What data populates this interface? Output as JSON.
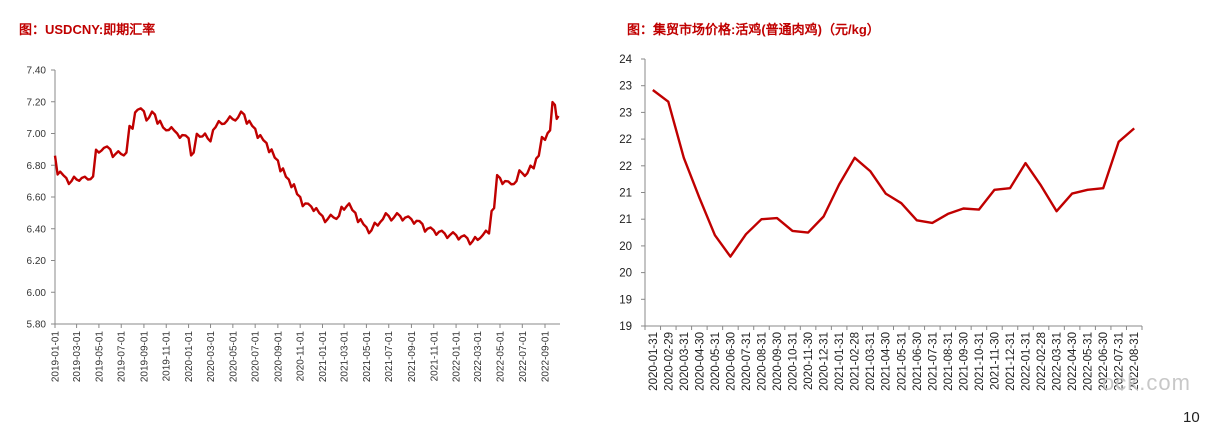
{
  "colors": {
    "series": "#c00000",
    "title": "#c00000",
    "axis": "#888888"
  },
  "chart_data": [
    {
      "type": "line",
      "title": "图：USDCNY:即期汇率",
      "xlabel": "",
      "ylabel": "",
      "ylim": [
        5.8,
        7.4
      ],
      "yticks": [
        "7.40",
        "7.20",
        "7.00",
        "6.80",
        "6.60",
        "6.40",
        "6.20",
        "6.00",
        "5.80"
      ],
      "xticks": [
        "2019-01-01",
        "2019-03-01",
        "2019-05-01",
        "2019-07-01",
        "2019-09-01",
        "2019-11-01",
        "2020-01-01",
        "2020-03-01",
        "2020-05-01",
        "2020-07-01",
        "2020-09-01",
        "2020-11-01",
        "2021-01-01",
        "2021-03-01",
        "2021-05-01",
        "2021-07-01",
        "2021-09-01",
        "2021-11-01",
        "2022-01-01",
        "2022-03-01",
        "2022-05-01",
        "2022-07-01",
        "2022-09-01"
      ],
      "grid": false,
      "series": [
        {
          "x": [
            "2019-01-01",
            "2019-01-15",
            "2019-02-01",
            "2019-02-15",
            "2019-03-01",
            "2019-03-15",
            "2019-04-01",
            "2019-04-15",
            "2019-05-01",
            "2019-05-15",
            "2019-06-01",
            "2019-06-15",
            "2019-07-01",
            "2019-07-15",
            "2019-08-01",
            "2019-08-15",
            "2019-09-01",
            "2019-09-15",
            "2019-10-01",
            "2019-10-15",
            "2019-11-01",
            "2019-11-15",
            "2019-12-01",
            "2019-12-15",
            "2020-01-01",
            "2020-01-15",
            "2020-02-01",
            "2020-02-15",
            "2020-03-01",
            "2020-03-15",
            "2020-04-01",
            "2020-04-15",
            "2020-05-01",
            "2020-05-15",
            "2020-06-01",
            "2020-06-15",
            "2020-07-01",
            "2020-07-15",
            "2020-08-01",
            "2020-08-15",
            "2020-09-01",
            "2020-09-15",
            "2020-10-01",
            "2020-10-15",
            "2020-11-01",
            "2020-11-15",
            "2020-12-01",
            "2020-12-15",
            "2021-01-01",
            "2021-01-15",
            "2021-02-01",
            "2021-02-15",
            "2021-03-01",
            "2021-03-15",
            "2021-04-01",
            "2021-04-15",
            "2021-05-01",
            "2021-05-15",
            "2021-06-01",
            "2021-06-15",
            "2021-07-01",
            "2021-07-15",
            "2021-08-01",
            "2021-08-15",
            "2021-09-01",
            "2021-09-15",
            "2021-10-01",
            "2021-10-15",
            "2021-11-01",
            "2021-11-15",
            "2021-12-01",
            "2021-12-15",
            "2022-01-01",
            "2022-01-15",
            "2022-02-01",
            "2022-02-15",
            "2022-03-01",
            "2022-03-15",
            "2022-04-01",
            "2022-04-15",
            "2022-05-01",
            "2022-05-15",
            "2022-06-01",
            "2022-06-15",
            "2022-07-01",
            "2022-07-15",
            "2022-08-01",
            "2022-08-15",
            "2022-09-01",
            "2022-09-15",
            "2022-09-28",
            "2022-10-08"
          ],
          "y": [
            6.86,
            6.76,
            6.72,
            6.7,
            6.71,
            6.72,
            6.71,
            6.73,
            6.88,
            6.91,
            6.9,
            6.87,
            6.87,
            6.88,
            7.03,
            7.15,
            7.14,
            7.1,
            7.12,
            7.08,
            7.02,
            7.04,
            7.0,
            6.99,
            6.97,
            6.88,
            6.98,
            7.0,
            6.95,
            7.04,
            7.06,
            7.08,
            7.09,
            7.1,
            7.12,
            7.08,
            7.03,
            6.99,
            6.94,
            6.9,
            6.83,
            6.78,
            6.71,
            6.68,
            6.6,
            6.56,
            6.54,
            6.53,
            6.48,
            6.46,
            6.47,
            6.48,
            6.52,
            6.56,
            6.5,
            6.46,
            6.41,
            6.39,
            6.42,
            6.46,
            6.48,
            6.47,
            6.48,
            6.47,
            6.46,
            6.45,
            6.43,
            6.4,
            6.39,
            6.38,
            6.37,
            6.36,
            6.36,
            6.35,
            6.34,
            6.32,
            6.33,
            6.36,
            6.37,
            6.53,
            6.72,
            6.7,
            6.68,
            6.7,
            6.75,
            6.75,
            6.78,
            6.86,
            6.96,
            7.02,
            7.18,
            7.11
          ]
        }
      ]
    },
    {
      "type": "line",
      "title": "图：集贸市场价格:活鸡(普通肉鸡)（元/kg）",
      "xlabel": "",
      "ylabel": "",
      "ylim": [
        19,
        24
      ],
      "ytick_values": [
        24,
        23.5,
        23,
        22.5,
        22,
        21.5,
        21,
        20.5,
        20,
        19.5,
        19
      ],
      "ytick_labels": [
        "24",
        "23",
        "23",
        "22",
        "22",
        "21",
        "21",
        "20",
        "20",
        "19",
        "19"
      ],
      "grid": false,
      "categories": [
        "2020-01-31",
        "2020-02-29",
        "2020-03-31",
        "2020-04-30",
        "2020-05-31",
        "2020-06-30",
        "2020-07-31",
        "2020-08-31",
        "2020-09-30",
        "2020-10-31",
        "2020-11-30",
        "2020-12-31",
        "2021-01-31",
        "2021-02-28",
        "2021-03-31",
        "2021-04-30",
        "2021-05-31",
        "2021-06-30",
        "2021-07-31",
        "2021-08-31",
        "2021-09-30",
        "2021-10-31",
        "2021-11-30",
        "2021-12-31",
        "2022-01-31",
        "2022-02-28",
        "2022-03-31",
        "2022-04-30",
        "2022-05-31",
        "2022-06-30",
        "2022-07-31",
        "2022-08-31"
      ],
      "series": [
        {
          "values": [
            23.42,
            23.2,
            22.15,
            21.4,
            20.7,
            20.3,
            20.72,
            21.0,
            21.02,
            20.78,
            20.75,
            21.05,
            21.65,
            22.15,
            21.9,
            21.48,
            21.3,
            20.98,
            20.93,
            21.1,
            21.2,
            21.18,
            21.55,
            21.58,
            22.05,
            21.63,
            21.15,
            21.48,
            21.55,
            21.58,
            22.45,
            22.7
          ]
        }
      ]
    }
  ],
  "watermark": "ock.com",
  "page_number": "10"
}
